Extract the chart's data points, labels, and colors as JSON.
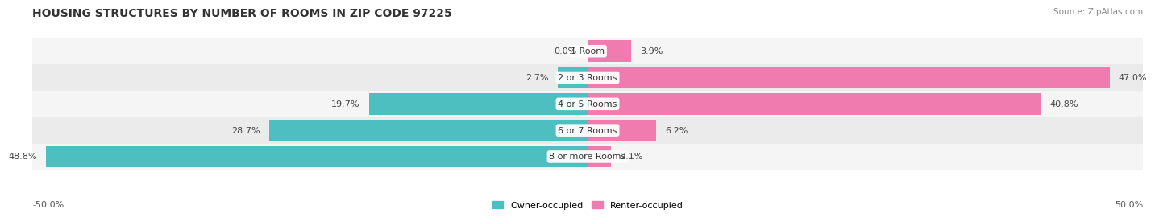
{
  "title": "HOUSING STRUCTURES BY NUMBER OF ROOMS IN ZIP CODE 97225",
  "source": "Source: ZipAtlas.com",
  "categories": [
    "1 Room",
    "2 or 3 Rooms",
    "4 or 5 Rooms",
    "6 or 7 Rooms",
    "8 or more Rooms"
  ],
  "owner_values": [
    0.0,
    2.7,
    19.7,
    28.7,
    48.8
  ],
  "renter_values": [
    3.9,
    47.0,
    40.8,
    6.2,
    2.1
  ],
  "owner_color": "#4DBFC0",
  "renter_color": "#F07BAE",
  "row_bg_colors": [
    "#F5F5F5",
    "#EBEBEB"
  ],
  "xlim": [
    -50,
    50
  ],
  "axis_label_left": "-50.0%",
  "axis_label_right": "50.0%",
  "legend_owner": "Owner-occupied",
  "legend_renter": "Renter-occupied",
  "title_fontsize": 10,
  "source_fontsize": 7.5,
  "label_fontsize": 8,
  "category_fontsize": 8,
  "bar_height": 0.82
}
